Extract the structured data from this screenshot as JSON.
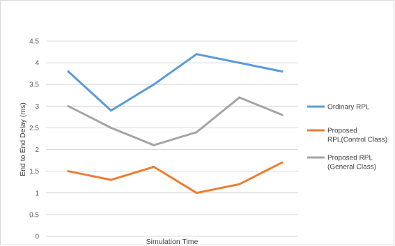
{
  "chart_data": {
    "type": "line",
    "title": "",
    "xlabel": "Simulation Time",
    "ylabel": "End to End Delay (ms)",
    "ylim": [
      0,
      4.5
    ],
    "y_ticks": [
      "0",
      "0.5",
      "1",
      "1.5",
      "2",
      "2.5",
      "3",
      "3.5",
      "4",
      "4.5"
    ],
    "x": [
      1,
      2,
      3,
      4,
      5,
      6
    ],
    "grid": true,
    "legend_position": "right",
    "series": [
      {
        "name": "Ordinary RPL",
        "color": "#5b9bd5",
        "values": [
          3.8,
          2.9,
          3.5,
          4.2,
          4.0,
          3.8
        ]
      },
      {
        "name": "Proposed RPL(Control Class)",
        "color": "#ed7d31",
        "values": [
          1.5,
          1.3,
          1.6,
          1.0,
          1.2,
          1.7
        ]
      },
      {
        "name": "Proposed RPL (General Class)",
        "color": "#a5a5a5",
        "values": [
          3.0,
          2.5,
          2.1,
          2.4,
          3.2,
          2.8
        ]
      }
    ],
    "legend_lines": [
      [
        "Ordinary RPL"
      ],
      [
        "Proposed",
        "RPL(Control Class)"
      ],
      [
        "Proposed RPL",
        "(General Class)"
      ]
    ]
  }
}
